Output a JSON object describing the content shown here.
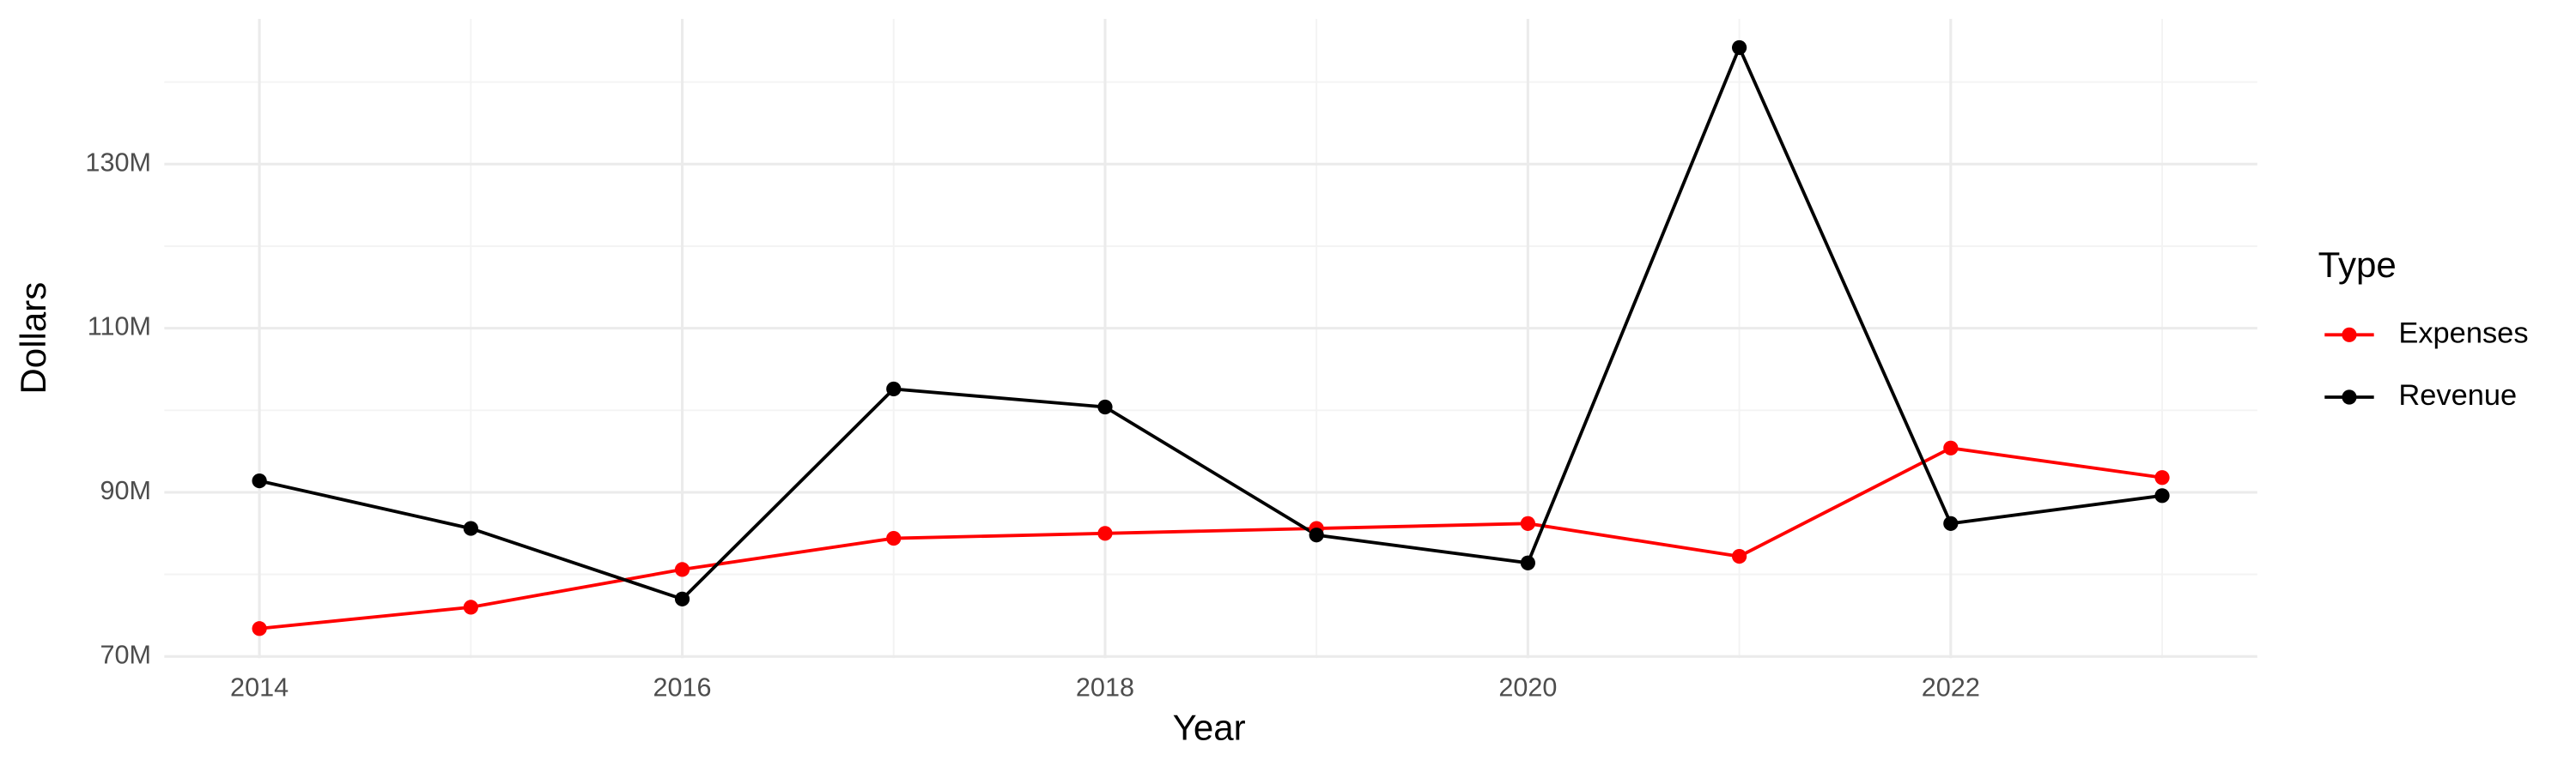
{
  "chart_data": {
    "type": "line",
    "x_label": "Year",
    "y_label": "Dollars",
    "legend_title": "Type",
    "legend_position": "right",
    "x": [
      2014,
      2015,
      2016,
      2017,
      2018,
      2019,
      2020,
      2021,
      2022,
      2023
    ],
    "series": [
      {
        "name": "Expenses",
        "color": "#ff0000",
        "values": [
          73400000,
          76000000,
          80600000,
          84400000,
          85000000,
          85600000,
          86200000,
          82200000,
          95400000,
          91800000
        ]
      },
      {
        "name": "Revenue",
        "color": "#000000",
        "values": [
          91400000,
          85600000,
          77000000,
          102600000,
          100400000,
          84800000,
          81400000,
          144200000,
          86200000,
          89600000
        ]
      }
    ],
    "xlim": [
      2013.55,
      2023.45
    ],
    "xticks": [
      2014,
      2016,
      2018,
      2020,
      2022
    ],
    "ylim": [
      69800000,
      147700000
    ],
    "yticks": [
      {
        "value": 70000000,
        "label": "70M"
      },
      {
        "value": 90000000,
        "label": "90M"
      },
      {
        "value": 110000000,
        "label": "110M"
      },
      {
        "value": 130000000,
        "label": "130M"
      }
    ],
    "grid": true
  }
}
